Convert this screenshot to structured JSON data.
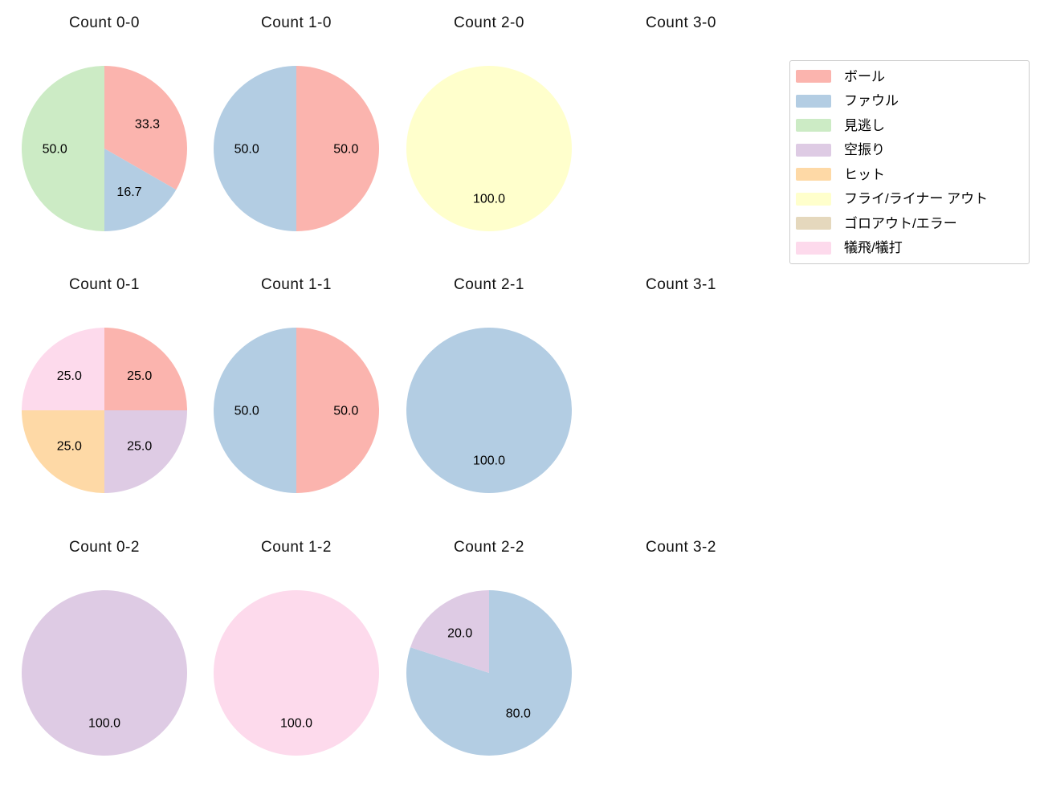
{
  "figure": {
    "background": "#ffffff"
  },
  "legend": {
    "position": "top-right",
    "items": [
      {
        "label": "ボール",
        "color": "#fbb4ae"
      },
      {
        "label": "ファウル",
        "color": "#b3cde3"
      },
      {
        "label": "見逃し",
        "color": "#ccebc5"
      },
      {
        "label": "空振り",
        "color": "#decbe4"
      },
      {
        "label": "ヒット",
        "color": "#fed9a6"
      },
      {
        "label": "フライ/ライナー アウト",
        "color": "#ffffcc"
      },
      {
        "label": "ゴロアウト/エラー",
        "color": "#e5d8bd"
      },
      {
        "label": "犠飛/犠打",
        "color": "#fddaec"
      }
    ]
  },
  "chart_data": {
    "type": "pie",
    "layout": "4x3 grid of pies (columns = balls 0-3, rows = strikes 0-2); slices start at 12 o'clock and run clockwise; percentage labels at 0.6 radius; pies for Count 3-0, 3-1, 3-2 are empty (title only)",
    "label_format": "percent with one decimal",
    "palette": {
      "ボール": "#fbb4ae",
      "ファウル": "#b3cde3",
      "見逃し": "#ccebc5",
      "空振り": "#decbe4",
      "ヒット": "#fed9a6",
      "フライ/ライナー アウト": "#ffffcc",
      "ゴロアウト/エラー": "#e5d8bd",
      "犠飛/犠打": "#fddaec"
    },
    "pies": [
      {
        "title": "Count 0-0",
        "slices": [
          {
            "category": "ボール",
            "pct": 33.3,
            "label": "33.3"
          },
          {
            "category": "ファウル",
            "pct": 16.7,
            "label": "16.7"
          },
          {
            "category": "見逃し",
            "pct": 50.0,
            "label": "50.0"
          }
        ]
      },
      {
        "title": "Count 1-0",
        "slices": [
          {
            "category": "ボール",
            "pct": 50.0,
            "label": "50.0"
          },
          {
            "category": "ファウル",
            "pct": 50.0,
            "label": "50.0"
          }
        ]
      },
      {
        "title": "Count 2-0",
        "slices": [
          {
            "category": "フライ/ライナー アウト",
            "pct": 100.0,
            "label": "100.0"
          }
        ]
      },
      {
        "title": "Count 3-0",
        "slices": []
      },
      {
        "title": "Count 0-1",
        "slices": [
          {
            "category": "ボール",
            "pct": 25.0,
            "label": "25.0"
          },
          {
            "category": "空振り",
            "pct": 25.0,
            "label": "25.0"
          },
          {
            "category": "ヒット",
            "pct": 25.0,
            "label": "25.0"
          },
          {
            "category": "犠飛/犠打",
            "pct": 25.0,
            "label": "25.0"
          }
        ]
      },
      {
        "title": "Count 1-1",
        "slices": [
          {
            "category": "ボール",
            "pct": 50.0,
            "label": "50.0"
          },
          {
            "category": "ファウル",
            "pct": 50.0,
            "label": "50.0"
          }
        ]
      },
      {
        "title": "Count 2-1",
        "slices": [
          {
            "category": "ファウル",
            "pct": 100.0,
            "label": "100.0"
          }
        ]
      },
      {
        "title": "Count 3-1",
        "slices": []
      },
      {
        "title": "Count 0-2",
        "slices": [
          {
            "category": "空振り",
            "pct": 100.0,
            "label": "100.0"
          }
        ]
      },
      {
        "title": "Count 1-2",
        "slices": [
          {
            "category": "犠飛/犠打",
            "pct": 100.0,
            "label": "100.0"
          }
        ]
      },
      {
        "title": "Count 2-2",
        "slices": [
          {
            "category": "ファウル",
            "pct": 80.0,
            "label": "80.0"
          },
          {
            "category": "空振り",
            "pct": 20.0,
            "label": "20.0"
          }
        ]
      },
      {
        "title": "Count 3-2",
        "slices": []
      }
    ]
  }
}
